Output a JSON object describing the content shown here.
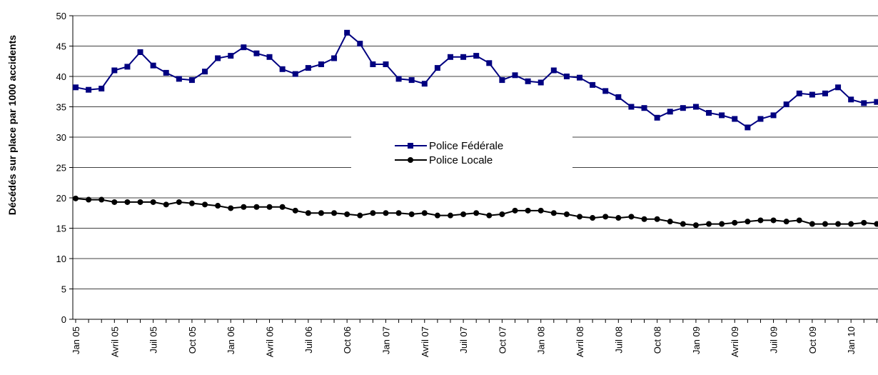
{
  "chart_data": {
    "type": "line",
    "title": "",
    "xlabel": "",
    "ylabel": "Décédés  sur place par 1000 accidents",
    "ylim": [
      0,
      50
    ],
    "yticks": [
      0,
      5,
      10,
      15,
      20,
      25,
      30,
      35,
      40,
      45,
      50
    ],
    "grid": true,
    "legend": "center",
    "x_labels": [
      {
        "index": 0,
        "text": "Jan 05"
      },
      {
        "index": 3,
        "text": "Avril 05"
      },
      {
        "index": 6,
        "text": "Juil 05"
      },
      {
        "index": 9,
        "text": "Oct 05"
      },
      {
        "index": 12,
        "text": "Jan 06"
      },
      {
        "index": 15,
        "text": "Avril 06"
      },
      {
        "index": 18,
        "text": "Juil 06"
      },
      {
        "index": 21,
        "text": "Oct 06"
      },
      {
        "index": 24,
        "text": "Jan 07"
      },
      {
        "index": 27,
        "text": "Avril 07"
      },
      {
        "index": 30,
        "text": "Juil 07"
      },
      {
        "index": 33,
        "text": "Oct 07"
      },
      {
        "index": 36,
        "text": "Jan 08"
      },
      {
        "index": 39,
        "text": "Avril 08"
      },
      {
        "index": 42,
        "text": "Juil 08"
      },
      {
        "index": 45,
        "text": "Oct 08"
      },
      {
        "index": 48,
        "text": "Jan 09"
      },
      {
        "index": 51,
        "text": "Avril 09"
      },
      {
        "index": 54,
        "text": "Juil 09"
      },
      {
        "index": 57,
        "text": "Oct 09"
      },
      {
        "index": 60,
        "text": "Jan 10"
      }
    ],
    "series": [
      {
        "name": "Police Fédérale",
        "color": "#000080",
        "marker": "square",
        "values": [
          38.2,
          37.8,
          38.0,
          41.0,
          41.6,
          44.0,
          41.8,
          40.6,
          39.6,
          39.4,
          40.8,
          43.0,
          43.4,
          44.8,
          43.8,
          43.2,
          41.2,
          40.4,
          41.4,
          42.0,
          43.0,
          47.2,
          45.4,
          42.0,
          42.0,
          39.6,
          39.4,
          38.8,
          41.4,
          43.2,
          43.2,
          43.4,
          42.2,
          39.4,
          40.2,
          39.2,
          39.0,
          41.0,
          40.0,
          39.8,
          38.6,
          37.6,
          36.6,
          35.0,
          34.8,
          33.2,
          34.2,
          34.8,
          35.0,
          34.0,
          33.6,
          33.0,
          31.6,
          33.0,
          33.6,
          35.4,
          37.2,
          37.0,
          37.2,
          38.2,
          36.2,
          35.6,
          35.8
        ]
      },
      {
        "name": "Police Locale",
        "color": "#000000",
        "marker": "circle",
        "values": [
          19.9,
          19.7,
          19.7,
          19.3,
          19.3,
          19.3,
          19.3,
          18.9,
          19.3,
          19.1,
          18.9,
          18.7,
          18.3,
          18.5,
          18.5,
          18.5,
          18.5,
          17.9,
          17.5,
          17.5,
          17.5,
          17.3,
          17.1,
          17.5,
          17.5,
          17.5,
          17.3,
          17.5,
          17.1,
          17.1,
          17.3,
          17.5,
          17.1,
          17.3,
          17.9,
          17.9,
          17.9,
          17.5,
          17.3,
          16.9,
          16.7,
          16.9,
          16.7,
          16.9,
          16.5,
          16.5,
          16.1,
          15.7,
          15.5,
          15.7,
          15.7,
          15.9,
          16.1,
          16.3,
          16.3,
          16.1,
          16.3,
          15.7,
          15.7,
          15.7,
          15.7,
          15.9,
          15.7
        ]
      }
    ]
  }
}
